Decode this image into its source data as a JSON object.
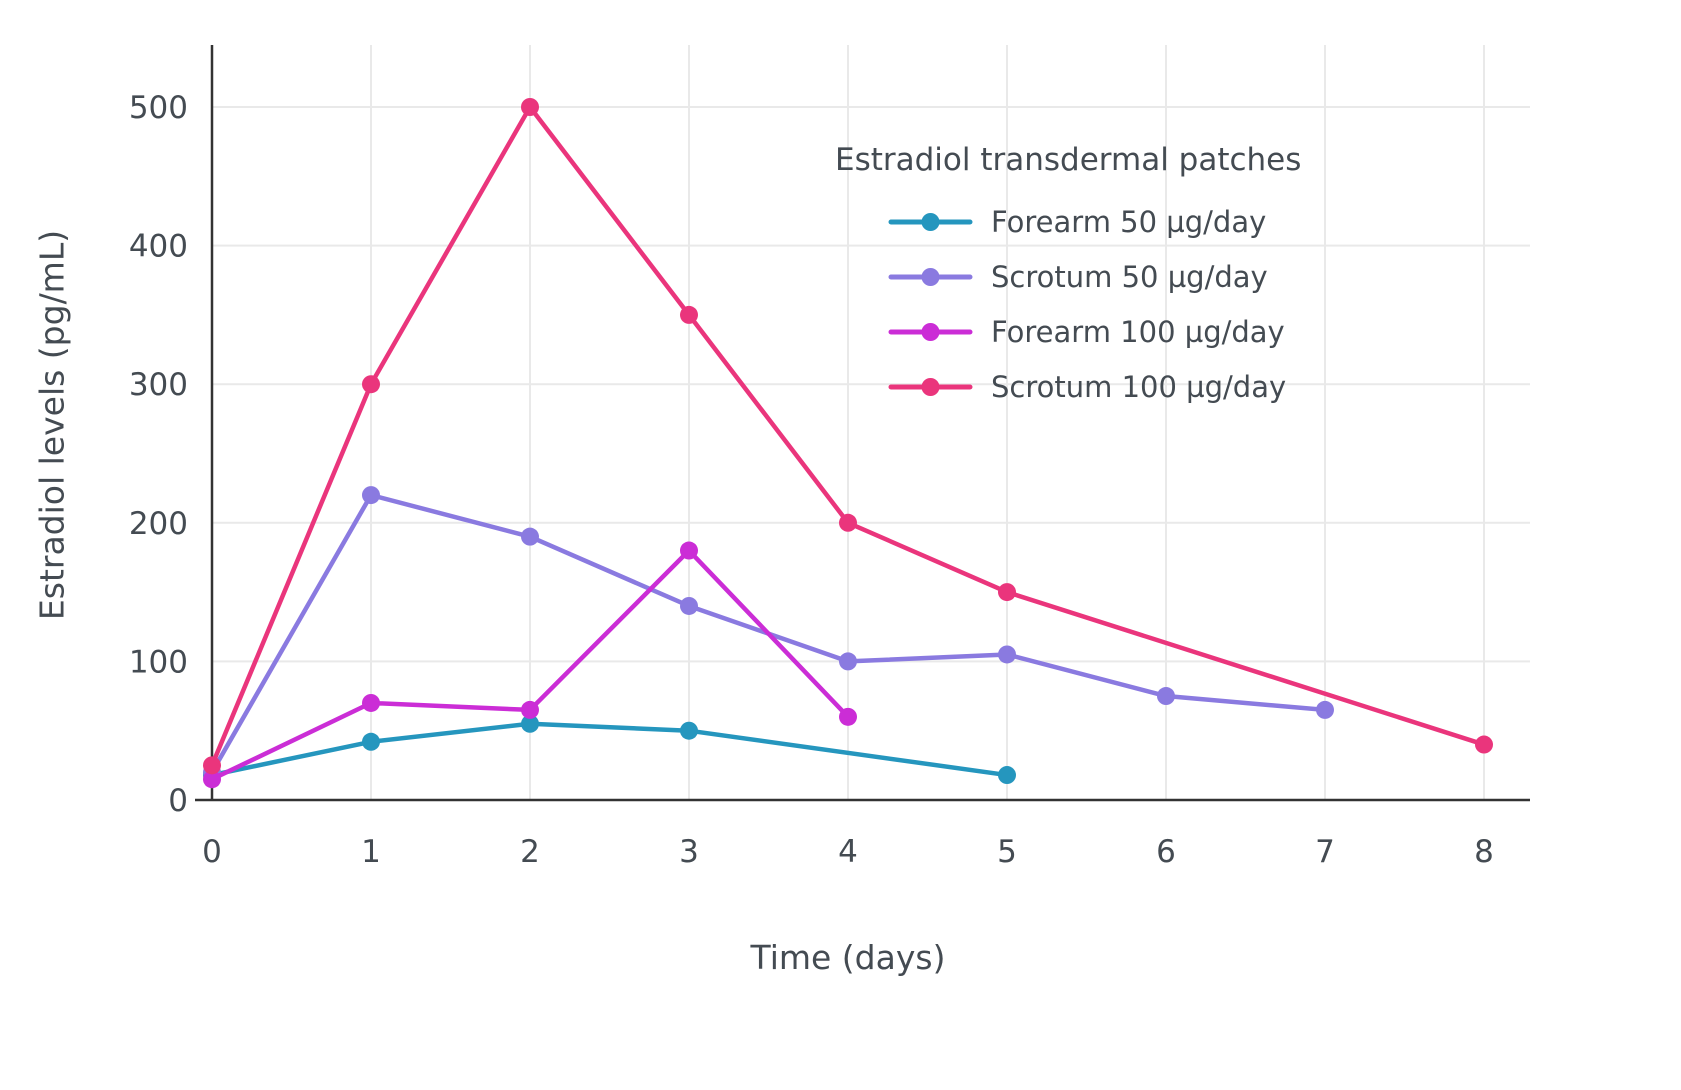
{
  "chart_data": {
    "type": "line",
    "legend_title": "Estradiol transdermal patches",
    "xlabel": "Time (days)",
    "ylabel": "Estradiol levels (pg/mL)",
    "xlim": [
      0,
      8
    ],
    "ylim": [
      0,
      545
    ],
    "xticks": [
      0,
      1,
      2,
      3,
      4,
      5,
      6,
      7,
      8
    ],
    "yticks": [
      0,
      100,
      200,
      300,
      400,
      500
    ],
    "grid": true,
    "legend_position": "inside upper right",
    "series": [
      {
        "name": "Forearm 50 µg/day",
        "color": "#2596be",
        "x": [
          0,
          1,
          2,
          3,
          5
        ],
        "y": [
          18,
          42,
          55,
          50,
          18
        ]
      },
      {
        "name": "Scrotum 50 µg/day",
        "color": "#8a7ae0",
        "x": [
          0,
          1,
          2,
          3,
          4,
          5,
          6,
          7
        ],
        "y": [
          20,
          220,
          190,
          140,
          100,
          105,
          75,
          65
        ]
      },
      {
        "name": "Forearm 100 µg/day",
        "color": "#cb2dd6",
        "x": [
          0,
          1,
          2,
          3,
          4
        ],
        "y": [
          15,
          70,
          65,
          180,
          60
        ]
      },
      {
        "name": "Scrotum 100 µg/day",
        "color": "#ea357c",
        "x": [
          0,
          1,
          2,
          3,
          4,
          5,
          8
        ],
        "y": [
          25,
          300,
          500,
          350,
          200,
          150,
          40
        ]
      }
    ],
    "style": {
      "grid_color": "#e9e9e9",
      "axis_color": "#333333",
      "text_color": "#444b52",
      "background": "#ffffff"
    }
  }
}
